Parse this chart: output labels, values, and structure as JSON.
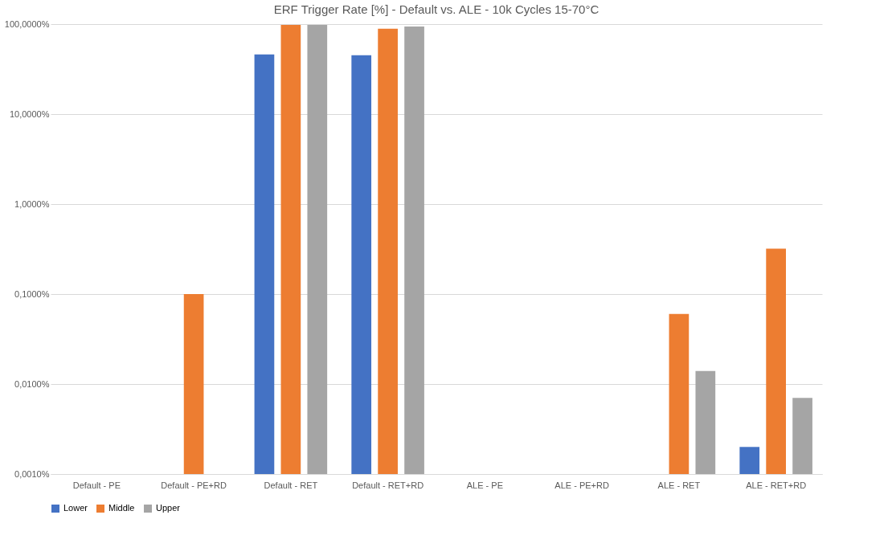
{
  "chart_data": {
    "type": "bar",
    "title": "ERF Trigger Rate [%] - Default vs. ALE - 10k Cycles 15-70°C",
    "categories": [
      "Default - PE",
      "Default - PE+RD",
      "Default - RET",
      "Default - RET+RD",
      "ALE - PE",
      "ALE - PE+RD",
      "ALE - RET",
      "ALE - RET+RD"
    ],
    "series": [
      {
        "name": "Lower",
        "color": "#4472c4",
        "values": [
          null,
          null,
          46,
          45,
          null,
          null,
          null,
          0.002
        ]
      },
      {
        "name": "Middle",
        "color": "#ed7d31",
        "values": [
          null,
          0.1,
          98,
          89,
          null,
          null,
          0.06,
          0.32
        ]
      },
      {
        "name": "Upper",
        "color": "#a5a5a5",
        "values": [
          null,
          null,
          98,
          94,
          null,
          null,
          0.014,
          0.007
        ]
      }
    ],
    "log": "y",
    "ylim": [
      0.001,
      100
    ],
    "yticks": [
      {
        "value": 0.001,
        "label": "0,0010%"
      },
      {
        "value": 0.01,
        "label": "0,0100%"
      },
      {
        "value": 0.1,
        "label": "0,1000%"
      },
      {
        "value": 1,
        "label": "1,0000%"
      },
      {
        "value": 10,
        "label": "10,0000%"
      },
      {
        "value": 100,
        "label": "100,0000%"
      }
    ],
    "grid": "y",
    "legend": "bottom"
  }
}
